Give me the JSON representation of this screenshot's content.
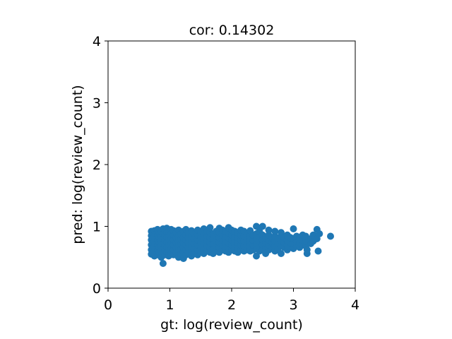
{
  "chart_data": {
    "type": "scatter",
    "title": "cor: 0.14302",
    "xlabel": "gt: log(review_count)",
    "ylabel": "pred: log(review_count)",
    "xlim": [
      0,
      4
    ],
    "ylim": [
      0,
      4
    ],
    "xticks": [
      "0",
      "1",
      "2",
      "3",
      "4"
    ],
    "yticks": [
      "0",
      "1",
      "2",
      "3",
      "4"
    ],
    "grid": false,
    "marker_color": "#1f77b4",
    "series": [
      {
        "points": [
          [
            0.7,
            0.55
          ],
          [
            0.7,
            0.62
          ],
          [
            0.7,
            0.7
          ],
          [
            0.7,
            0.78
          ],
          [
            0.7,
            0.85
          ],
          [
            0.7,
            0.92
          ],
          [
            0.72,
            0.58
          ],
          [
            0.72,
            0.66
          ],
          [
            0.72,
            0.74
          ],
          [
            0.72,
            0.82
          ],
          [
            0.72,
            0.9
          ],
          [
            0.75,
            0.52
          ],
          [
            0.75,
            0.6
          ],
          [
            0.75,
            0.68
          ],
          [
            0.75,
            0.76
          ],
          [
            0.75,
            0.84
          ],
          [
            0.75,
            0.93
          ],
          [
            0.78,
            0.56
          ],
          [
            0.78,
            0.64
          ],
          [
            0.78,
            0.72
          ],
          [
            0.78,
            0.8
          ],
          [
            0.78,
            0.88
          ],
          [
            0.8,
            0.54
          ],
          [
            0.8,
            0.62
          ],
          [
            0.8,
            0.7
          ],
          [
            0.8,
            0.78
          ],
          [
            0.8,
            0.86
          ],
          [
            0.8,
            0.95
          ],
          [
            0.83,
            0.58
          ],
          [
            0.83,
            0.66
          ],
          [
            0.83,
            0.74
          ],
          [
            0.83,
            0.82
          ],
          [
            0.83,
            0.9
          ],
          [
            0.86,
            0.5
          ],
          [
            0.86,
            0.6
          ],
          [
            0.86,
            0.68
          ],
          [
            0.86,
            0.76
          ],
          [
            0.86,
            0.84
          ],
          [
            0.86,
            0.92
          ],
          [
            0.89,
            0.4
          ],
          [
            0.89,
            0.56
          ],
          [
            0.89,
            0.64
          ],
          [
            0.89,
            0.72
          ],
          [
            0.89,
            0.8
          ],
          [
            0.89,
            0.88
          ],
          [
            0.89,
            0.96
          ],
          [
            0.92,
            0.54
          ],
          [
            0.92,
            0.62
          ],
          [
            0.92,
            0.7
          ],
          [
            0.92,
            0.78
          ],
          [
            0.92,
            0.86
          ],
          [
            0.92,
            0.94
          ],
          [
            0.95,
            0.58
          ],
          [
            0.95,
            0.66
          ],
          [
            0.95,
            0.74
          ],
          [
            0.95,
            0.82
          ],
          [
            0.95,
            0.9
          ],
          [
            0.95,
            0.97
          ],
          [
            0.98,
            0.52
          ],
          [
            0.98,
            0.6
          ],
          [
            0.98,
            0.68
          ],
          [
            0.98,
            0.76
          ],
          [
            0.98,
            0.84
          ],
          [
            0.98,
            0.92
          ],
          [
            1.02,
            0.56
          ],
          [
            1.02,
            0.64
          ],
          [
            1.02,
            0.72
          ],
          [
            1.02,
            0.8
          ],
          [
            1.02,
            0.88
          ],
          [
            1.02,
            0.95
          ],
          [
            1.06,
            0.54
          ],
          [
            1.06,
            0.62
          ],
          [
            1.06,
            0.7
          ],
          [
            1.06,
            0.78
          ],
          [
            1.06,
            0.86
          ],
          [
            1.06,
            0.93
          ],
          [
            1.1,
            0.58
          ],
          [
            1.1,
            0.66
          ],
          [
            1.1,
            0.74
          ],
          [
            1.1,
            0.82
          ],
          [
            1.1,
            0.9
          ],
          [
            1.14,
            0.5
          ],
          [
            1.14,
            0.6
          ],
          [
            1.14,
            0.68
          ],
          [
            1.14,
            0.76
          ],
          [
            1.14,
            0.84
          ],
          [
            1.14,
            0.94
          ],
          [
            1.18,
            0.56
          ],
          [
            1.18,
            0.64
          ],
          [
            1.18,
            0.72
          ],
          [
            1.18,
            0.8
          ],
          [
            1.18,
            0.88
          ],
          [
            1.22,
            0.48
          ],
          [
            1.22,
            0.58
          ],
          [
            1.22,
            0.66
          ],
          [
            1.22,
            0.74
          ],
          [
            1.22,
            0.82
          ],
          [
            1.22,
            0.92
          ],
          [
            1.26,
            0.54
          ],
          [
            1.26,
            0.62
          ],
          [
            1.26,
            0.7
          ],
          [
            1.26,
            0.78
          ],
          [
            1.26,
            0.86
          ],
          [
            1.26,
            0.95
          ],
          [
            1.3,
            0.58
          ],
          [
            1.3,
            0.66
          ],
          [
            1.3,
            0.74
          ],
          [
            1.3,
            0.82
          ],
          [
            1.3,
            0.9
          ],
          [
            1.35,
            0.52
          ],
          [
            1.35,
            0.6
          ],
          [
            1.35,
            0.68
          ],
          [
            1.35,
            0.76
          ],
          [
            1.35,
            0.84
          ],
          [
            1.35,
            0.93
          ],
          [
            1.4,
            0.56
          ],
          [
            1.4,
            0.64
          ],
          [
            1.4,
            0.72
          ],
          [
            1.4,
            0.8
          ],
          [
            1.4,
            0.88
          ],
          [
            1.45,
            0.54
          ],
          [
            1.45,
            0.62
          ],
          [
            1.45,
            0.7
          ],
          [
            1.45,
            0.78
          ],
          [
            1.45,
            0.86
          ],
          [
            1.45,
            0.94
          ],
          [
            1.5,
            0.58
          ],
          [
            1.5,
            0.66
          ],
          [
            1.5,
            0.74
          ],
          [
            1.5,
            0.82
          ],
          [
            1.5,
            0.9
          ],
          [
            1.55,
            0.56
          ],
          [
            1.55,
            0.64
          ],
          [
            1.55,
            0.72
          ],
          [
            1.55,
            0.8
          ],
          [
            1.55,
            0.88
          ],
          [
            1.55,
            0.96
          ],
          [
            1.6,
            0.6
          ],
          [
            1.6,
            0.68
          ],
          [
            1.6,
            0.76
          ],
          [
            1.6,
            0.84
          ],
          [
            1.6,
            0.92
          ],
          [
            1.65,
            0.58
          ],
          [
            1.65,
            0.66
          ],
          [
            1.65,
            0.74
          ],
          [
            1.65,
            0.82
          ],
          [
            1.65,
            0.9
          ],
          [
            1.65,
            0.98
          ],
          [
            1.7,
            0.56
          ],
          [
            1.7,
            0.64
          ],
          [
            1.7,
            0.72
          ],
          [
            1.7,
            0.8
          ],
          [
            1.7,
            0.88
          ],
          [
            1.75,
            0.6
          ],
          [
            1.75,
            0.68
          ],
          [
            1.75,
            0.76
          ],
          [
            1.75,
            0.84
          ],
          [
            1.75,
            0.92
          ],
          [
            1.8,
            0.58
          ],
          [
            1.8,
            0.66
          ],
          [
            1.8,
            0.74
          ],
          [
            1.8,
            0.82
          ],
          [
            1.8,
            0.9
          ],
          [
            1.8,
            0.97
          ],
          [
            1.85,
            0.62
          ],
          [
            1.85,
            0.7
          ],
          [
            1.85,
            0.78
          ],
          [
            1.85,
            0.86
          ],
          [
            1.85,
            0.94
          ],
          [
            1.9,
            0.6
          ],
          [
            1.9,
            0.68
          ],
          [
            1.9,
            0.76
          ],
          [
            1.9,
            0.84
          ],
          [
            1.9,
            0.92
          ],
          [
            1.95,
            0.58
          ],
          [
            1.95,
            0.66
          ],
          [
            1.95,
            0.74
          ],
          [
            1.95,
            0.82
          ],
          [
            1.95,
            0.9
          ],
          [
            1.95,
            0.98
          ],
          [
            2.0,
            0.62
          ],
          [
            2.0,
            0.7
          ],
          [
            2.0,
            0.78
          ],
          [
            2.0,
            0.86
          ],
          [
            2.0,
            0.94
          ],
          [
            2.05,
            0.6
          ],
          [
            2.05,
            0.68
          ],
          [
            2.05,
            0.76
          ],
          [
            2.05,
            0.84
          ],
          [
            2.05,
            0.92
          ],
          [
            2.1,
            0.58
          ],
          [
            2.1,
            0.66
          ],
          [
            2.1,
            0.74
          ],
          [
            2.1,
            0.82
          ],
          [
            2.1,
            0.9
          ],
          [
            2.15,
            0.62
          ],
          [
            2.15,
            0.7
          ],
          [
            2.15,
            0.78
          ],
          [
            2.15,
            0.86
          ],
          [
            2.15,
            0.94
          ],
          [
            2.2,
            0.6
          ],
          [
            2.2,
            0.68
          ],
          [
            2.2,
            0.76
          ],
          [
            2.2,
            0.84
          ],
          [
            2.2,
            0.92
          ],
          [
            2.25,
            0.62
          ],
          [
            2.25,
            0.7
          ],
          [
            2.25,
            0.78
          ],
          [
            2.25,
            0.86
          ],
          [
            2.3,
            0.6
          ],
          [
            2.3,
            0.68
          ],
          [
            2.3,
            0.76
          ],
          [
            2.3,
            0.84
          ],
          [
            2.3,
            0.93
          ],
          [
            2.35,
            0.62
          ],
          [
            2.35,
            0.7
          ],
          [
            2.35,
            0.78
          ],
          [
            2.35,
            0.86
          ],
          [
            2.4,
            0.52
          ],
          [
            2.4,
            0.64
          ],
          [
            2.4,
            0.72
          ],
          [
            2.4,
            0.8
          ],
          [
            2.4,
            0.88
          ],
          [
            2.4,
            1.0
          ],
          [
            2.45,
            0.6
          ],
          [
            2.45,
            0.68
          ],
          [
            2.45,
            0.76
          ],
          [
            2.45,
            0.84
          ],
          [
            2.45,
            0.92
          ],
          [
            2.5,
            0.62
          ],
          [
            2.5,
            0.7
          ],
          [
            2.5,
            0.78
          ],
          [
            2.5,
            0.86
          ],
          [
            2.5,
            1.0
          ],
          [
            2.55,
            0.56
          ],
          [
            2.55,
            0.66
          ],
          [
            2.55,
            0.74
          ],
          [
            2.55,
            0.82
          ],
          [
            2.6,
            0.62
          ],
          [
            2.6,
            0.7
          ],
          [
            2.6,
            0.78
          ],
          [
            2.6,
            0.86
          ],
          [
            2.6,
            0.94
          ],
          [
            2.65,
            0.66
          ],
          [
            2.65,
            0.74
          ],
          [
            2.65,
            0.82
          ],
          [
            2.7,
            0.6
          ],
          [
            2.7,
            0.68
          ],
          [
            2.7,
            0.76
          ],
          [
            2.7,
            0.84
          ],
          [
            2.7,
            0.92
          ],
          [
            2.75,
            0.64
          ],
          [
            2.75,
            0.72
          ],
          [
            2.75,
            0.8
          ],
          [
            2.8,
            0.56
          ],
          [
            2.8,
            0.68
          ],
          [
            2.8,
            0.76
          ],
          [
            2.8,
            0.84
          ],
          [
            2.8,
            0.9
          ],
          [
            2.85,
            0.66
          ],
          [
            2.85,
            0.74
          ],
          [
            2.85,
            0.82
          ],
          [
            2.9,
            0.62
          ],
          [
            2.9,
            0.7
          ],
          [
            2.9,
            0.78
          ],
          [
            2.9,
            0.86
          ],
          [
            2.95,
            0.66
          ],
          [
            2.95,
            0.74
          ],
          [
            2.95,
            0.82
          ],
          [
            3.0,
            0.64
          ],
          [
            3.0,
            0.72
          ],
          [
            3.0,
            0.8
          ],
          [
            3.0,
            0.96
          ],
          [
            3.05,
            0.68
          ],
          [
            3.05,
            0.76
          ],
          [
            3.05,
            0.84
          ],
          [
            3.1,
            0.66
          ],
          [
            3.1,
            0.74
          ],
          [
            3.1,
            0.82
          ],
          [
            3.15,
            0.7
          ],
          [
            3.15,
            0.78
          ],
          [
            3.15,
            0.86
          ],
          [
            3.2,
            0.68
          ],
          [
            3.2,
            0.76
          ],
          [
            3.2,
            0.84
          ],
          [
            3.22,
            0.56
          ],
          [
            3.22,
            0.62
          ],
          [
            3.28,
            0.72
          ],
          [
            3.28,
            0.8
          ],
          [
            3.32,
            0.76
          ],
          [
            3.32,
            0.86
          ],
          [
            3.38,
            0.8
          ],
          [
            3.38,
            0.95
          ],
          [
            3.4,
            0.6
          ],
          [
            3.42,
            0.88
          ],
          [
            3.6,
            0.84
          ]
        ]
      }
    ]
  }
}
